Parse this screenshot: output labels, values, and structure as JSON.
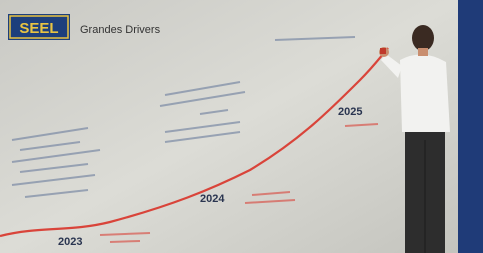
{
  "logo": "SEEL",
  "title": "Grandes Drivers",
  "years": [
    "2023",
    "2024",
    "2025"
  ]
}
